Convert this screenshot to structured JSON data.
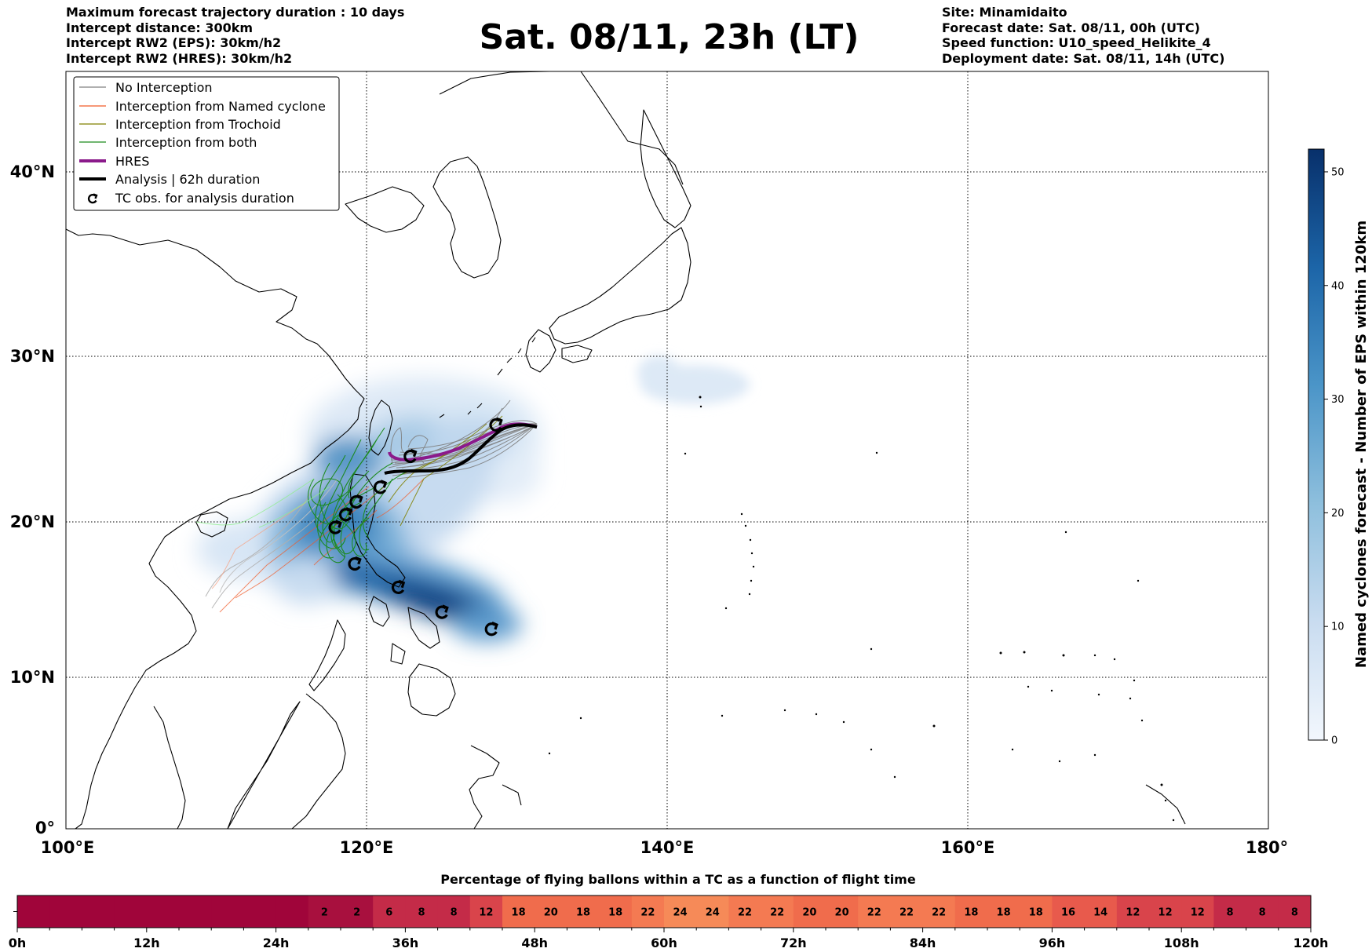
{
  "header": {
    "left": [
      "Maximum forecast trajectory duration : 10 days",
      "Intercept distance: 300km",
      "Intercept RW2 (EPS):  30km/h2",
      "Intercept RW2 (HRES): 30km/h2"
    ],
    "right": [
      "Site: Minamidaito",
      "Forecast date: Sat. 08/11, 00h (UTC)",
      "Speed function: U10_speed_Helikite_4",
      "Deployment date: Sat. 08/11, 14h (UTC)"
    ],
    "title": "Sat. 08/11, 23h (LT)"
  },
  "map": {
    "lon_range": [
      100,
      180
    ],
    "lat_range": [
      0,
      45
    ],
    "lat_labels": [
      "0°",
      "10°N",
      "20°N",
      "30°N",
      "40°N"
    ],
    "lon_labels": [
      "100°E",
      "120°E",
      "140°E",
      "160°E",
      "180°"
    ],
    "colors": {
      "no_interception": "#808080",
      "named_cyclone": "#f05a28",
      "trochoid": "#808000",
      "both": "#1a8a1a",
      "hres": "#8b1a8b",
      "analysis": "#000000"
    }
  },
  "legend": {
    "items": [
      {
        "label": "No Interception",
        "color": "#808080",
        "style": "thin"
      },
      {
        "label": "Interception from Named cyclone",
        "color": "#f05a28",
        "style": "thin"
      },
      {
        "label": "Interception from Trochoid",
        "color": "#808000",
        "style": "thin"
      },
      {
        "label": "Interception from both",
        "color": "#1a8a1a",
        "style": "thin"
      },
      {
        "label": "HRES",
        "color": "#8b1a8b",
        "style": "thick"
      },
      {
        "label": "Analysis | 62h duration",
        "color": "#000000",
        "style": "thick"
      },
      {
        "label": "TC obs. for analysis duration",
        "color": "#000000",
        "style": "symbol"
      }
    ]
  },
  "colorbar": {
    "title": "Named cyclones forecast - Number of EPS within 120km",
    "ticks": [
      "0",
      "10",
      "20",
      "30",
      "40",
      "50"
    ],
    "max": 52
  },
  "tc_obs": [
    {
      "lon": 128.3,
      "lat": 13.2
    },
    {
      "lon": 125.0,
      "lat": 14.3
    },
    {
      "lon": 122.1,
      "lat": 15.9
    },
    {
      "lon": 119.2,
      "lat": 17.4
    },
    {
      "lon": 117.9,
      "lat": 19.7
    },
    {
      "lon": 118.6,
      "lat": 20.5
    },
    {
      "lon": 119.3,
      "lat": 21.3
    },
    {
      "lon": 120.9,
      "lat": 22.2
    },
    {
      "lon": 122.9,
      "lat": 24.1
    },
    {
      "lon": 128.6,
      "lat": 26.0
    }
  ],
  "bottom_bar": {
    "title": "Percentage of flying ballons within a TC as a function of flight time",
    "cells": [
      "",
      "",
      "",
      "",
      "",
      "",
      "",
      "",
      "",
      "2",
      "2",
      "6",
      "8",
      "8",
      "12",
      "18",
      "20",
      "18",
      "18",
      "22",
      "24",
      "24",
      "22",
      "22",
      "20",
      "20",
      "22",
      "22",
      "22",
      "18",
      "18",
      "18",
      "16",
      "14",
      "12",
      "12",
      "12",
      "8",
      "8",
      "8"
    ],
    "ticks": [
      "0h",
      "12h",
      "24h",
      "36h",
      "48h",
      "60h",
      "72h",
      "84h",
      "96h",
      "108h",
      "120h"
    ]
  }
}
